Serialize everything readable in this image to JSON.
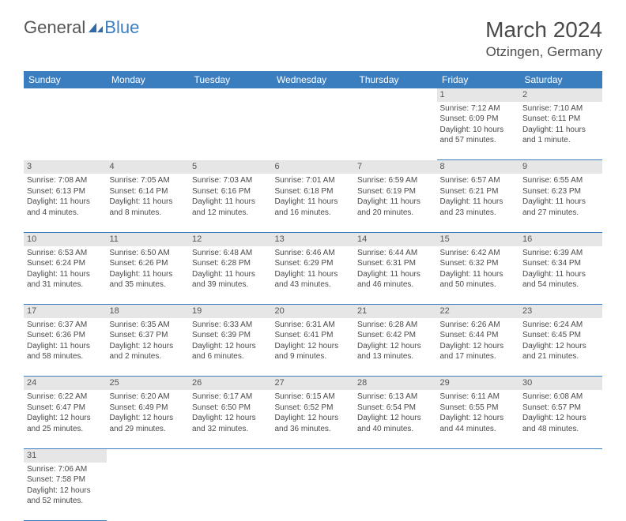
{
  "logo": {
    "text1": "General",
    "text2": "Blue",
    "icon_color": "#2f6aa8"
  },
  "header": {
    "month": "March 2024",
    "location": "Otzingen, Germany"
  },
  "colors": {
    "header_bg": "#3b7ec0",
    "header_text": "#ffffff",
    "daynum_bg": "#e6e6e6",
    "row_border": "#3b7ec0",
    "body_text": "#4a4a4a",
    "background": "#ffffff"
  },
  "fonts": {
    "title_size": 28,
    "location_size": 17,
    "header_size": 12,
    "cell_size": 10
  },
  "weekdays": [
    "Sunday",
    "Monday",
    "Tuesday",
    "Wednesday",
    "Thursday",
    "Friday",
    "Saturday"
  ],
  "weeks": [
    [
      null,
      null,
      null,
      null,
      null,
      {
        "n": "1",
        "sunrise": "Sunrise: 7:12 AM",
        "sunset": "Sunset: 6:09 PM",
        "day1": "Daylight: 10 hours",
        "day2": "and 57 minutes."
      },
      {
        "n": "2",
        "sunrise": "Sunrise: 7:10 AM",
        "sunset": "Sunset: 6:11 PM",
        "day1": "Daylight: 11 hours",
        "day2": "and 1 minute."
      }
    ],
    [
      {
        "n": "3",
        "sunrise": "Sunrise: 7:08 AM",
        "sunset": "Sunset: 6:13 PM",
        "day1": "Daylight: 11 hours",
        "day2": "and 4 minutes."
      },
      {
        "n": "4",
        "sunrise": "Sunrise: 7:05 AM",
        "sunset": "Sunset: 6:14 PM",
        "day1": "Daylight: 11 hours",
        "day2": "and 8 minutes."
      },
      {
        "n": "5",
        "sunrise": "Sunrise: 7:03 AM",
        "sunset": "Sunset: 6:16 PM",
        "day1": "Daylight: 11 hours",
        "day2": "and 12 minutes."
      },
      {
        "n": "6",
        "sunrise": "Sunrise: 7:01 AM",
        "sunset": "Sunset: 6:18 PM",
        "day1": "Daylight: 11 hours",
        "day2": "and 16 minutes."
      },
      {
        "n": "7",
        "sunrise": "Sunrise: 6:59 AM",
        "sunset": "Sunset: 6:19 PM",
        "day1": "Daylight: 11 hours",
        "day2": "and 20 minutes."
      },
      {
        "n": "8",
        "sunrise": "Sunrise: 6:57 AM",
        "sunset": "Sunset: 6:21 PM",
        "day1": "Daylight: 11 hours",
        "day2": "and 23 minutes."
      },
      {
        "n": "9",
        "sunrise": "Sunrise: 6:55 AM",
        "sunset": "Sunset: 6:23 PM",
        "day1": "Daylight: 11 hours",
        "day2": "and 27 minutes."
      }
    ],
    [
      {
        "n": "10",
        "sunrise": "Sunrise: 6:53 AM",
        "sunset": "Sunset: 6:24 PM",
        "day1": "Daylight: 11 hours",
        "day2": "and 31 minutes."
      },
      {
        "n": "11",
        "sunrise": "Sunrise: 6:50 AM",
        "sunset": "Sunset: 6:26 PM",
        "day1": "Daylight: 11 hours",
        "day2": "and 35 minutes."
      },
      {
        "n": "12",
        "sunrise": "Sunrise: 6:48 AM",
        "sunset": "Sunset: 6:28 PM",
        "day1": "Daylight: 11 hours",
        "day2": "and 39 minutes."
      },
      {
        "n": "13",
        "sunrise": "Sunrise: 6:46 AM",
        "sunset": "Sunset: 6:29 PM",
        "day1": "Daylight: 11 hours",
        "day2": "and 43 minutes."
      },
      {
        "n": "14",
        "sunrise": "Sunrise: 6:44 AM",
        "sunset": "Sunset: 6:31 PM",
        "day1": "Daylight: 11 hours",
        "day2": "and 46 minutes."
      },
      {
        "n": "15",
        "sunrise": "Sunrise: 6:42 AM",
        "sunset": "Sunset: 6:32 PM",
        "day1": "Daylight: 11 hours",
        "day2": "and 50 minutes."
      },
      {
        "n": "16",
        "sunrise": "Sunrise: 6:39 AM",
        "sunset": "Sunset: 6:34 PM",
        "day1": "Daylight: 11 hours",
        "day2": "and 54 minutes."
      }
    ],
    [
      {
        "n": "17",
        "sunrise": "Sunrise: 6:37 AM",
        "sunset": "Sunset: 6:36 PM",
        "day1": "Daylight: 11 hours",
        "day2": "and 58 minutes."
      },
      {
        "n": "18",
        "sunrise": "Sunrise: 6:35 AM",
        "sunset": "Sunset: 6:37 PM",
        "day1": "Daylight: 12 hours",
        "day2": "and 2 minutes."
      },
      {
        "n": "19",
        "sunrise": "Sunrise: 6:33 AM",
        "sunset": "Sunset: 6:39 PM",
        "day1": "Daylight: 12 hours",
        "day2": "and 6 minutes."
      },
      {
        "n": "20",
        "sunrise": "Sunrise: 6:31 AM",
        "sunset": "Sunset: 6:41 PM",
        "day1": "Daylight: 12 hours",
        "day2": "and 9 minutes."
      },
      {
        "n": "21",
        "sunrise": "Sunrise: 6:28 AM",
        "sunset": "Sunset: 6:42 PM",
        "day1": "Daylight: 12 hours",
        "day2": "and 13 minutes."
      },
      {
        "n": "22",
        "sunrise": "Sunrise: 6:26 AM",
        "sunset": "Sunset: 6:44 PM",
        "day1": "Daylight: 12 hours",
        "day2": "and 17 minutes."
      },
      {
        "n": "23",
        "sunrise": "Sunrise: 6:24 AM",
        "sunset": "Sunset: 6:45 PM",
        "day1": "Daylight: 12 hours",
        "day2": "and 21 minutes."
      }
    ],
    [
      {
        "n": "24",
        "sunrise": "Sunrise: 6:22 AM",
        "sunset": "Sunset: 6:47 PM",
        "day1": "Daylight: 12 hours",
        "day2": "and 25 minutes."
      },
      {
        "n": "25",
        "sunrise": "Sunrise: 6:20 AM",
        "sunset": "Sunset: 6:49 PM",
        "day1": "Daylight: 12 hours",
        "day2": "and 29 minutes."
      },
      {
        "n": "26",
        "sunrise": "Sunrise: 6:17 AM",
        "sunset": "Sunset: 6:50 PM",
        "day1": "Daylight: 12 hours",
        "day2": "and 32 minutes."
      },
      {
        "n": "27",
        "sunrise": "Sunrise: 6:15 AM",
        "sunset": "Sunset: 6:52 PM",
        "day1": "Daylight: 12 hours",
        "day2": "and 36 minutes."
      },
      {
        "n": "28",
        "sunrise": "Sunrise: 6:13 AM",
        "sunset": "Sunset: 6:54 PM",
        "day1": "Daylight: 12 hours",
        "day2": "and 40 minutes."
      },
      {
        "n": "29",
        "sunrise": "Sunrise: 6:11 AM",
        "sunset": "Sunset: 6:55 PM",
        "day1": "Daylight: 12 hours",
        "day2": "and 44 minutes."
      },
      {
        "n": "30",
        "sunrise": "Sunrise: 6:08 AM",
        "sunset": "Sunset: 6:57 PM",
        "day1": "Daylight: 12 hours",
        "day2": "and 48 minutes."
      }
    ],
    [
      {
        "n": "31",
        "sunrise": "Sunrise: 7:06 AM",
        "sunset": "Sunset: 7:58 PM",
        "day1": "Daylight: 12 hours",
        "day2": "and 52 minutes."
      },
      null,
      null,
      null,
      null,
      null,
      null
    ]
  ]
}
